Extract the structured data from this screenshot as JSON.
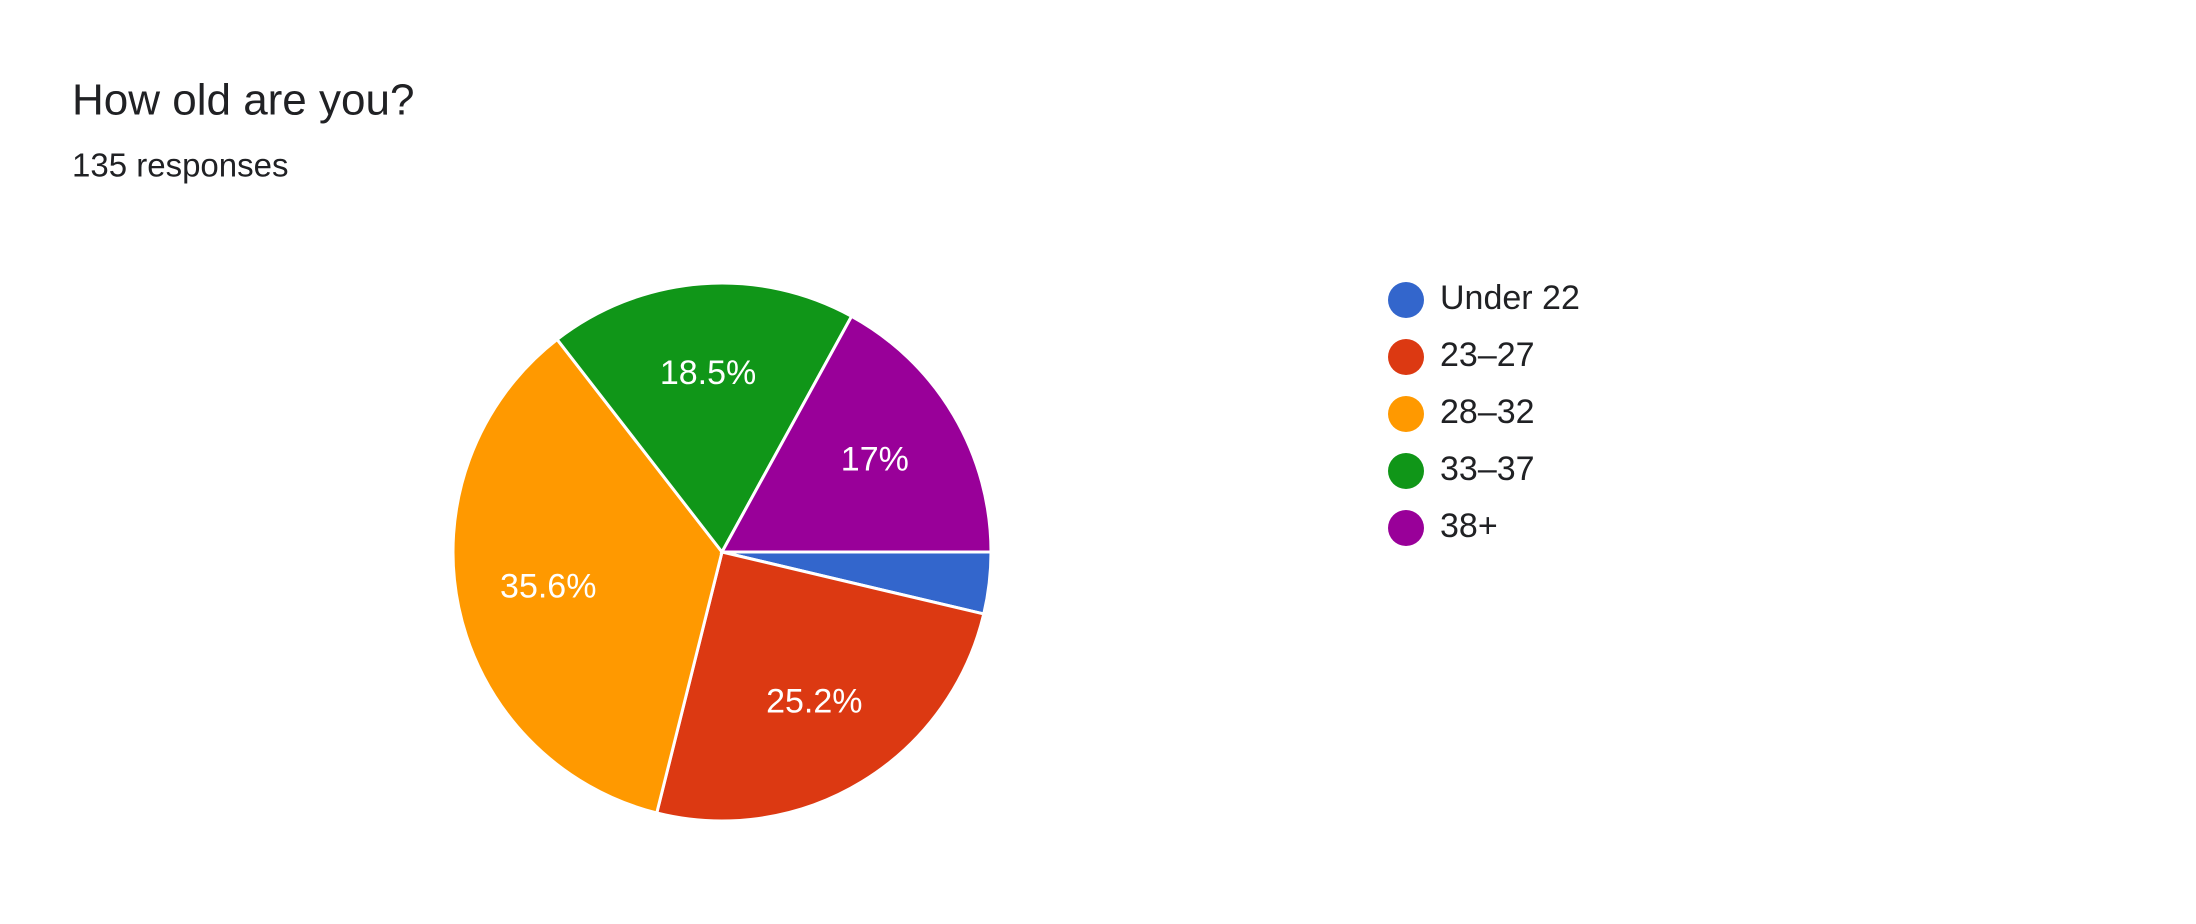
{
  "chart_data": {
    "type": "pie",
    "title": "How old are you?",
    "subtitle": "135 responses",
    "categories": [
      "Under 22",
      "23–27",
      "28–32",
      "33–37",
      "38+"
    ],
    "values": [
      3.7,
      25.2,
      35.6,
      18.5,
      17
    ],
    "value_labels": [
      null,
      "25.2%",
      "35.6%",
      "18.5%",
      "17%"
    ],
    "colors": [
      "#3366cc",
      "#dc3912",
      "#ff9900",
      "#109618",
      "#990099"
    ],
    "legend": "right"
  }
}
